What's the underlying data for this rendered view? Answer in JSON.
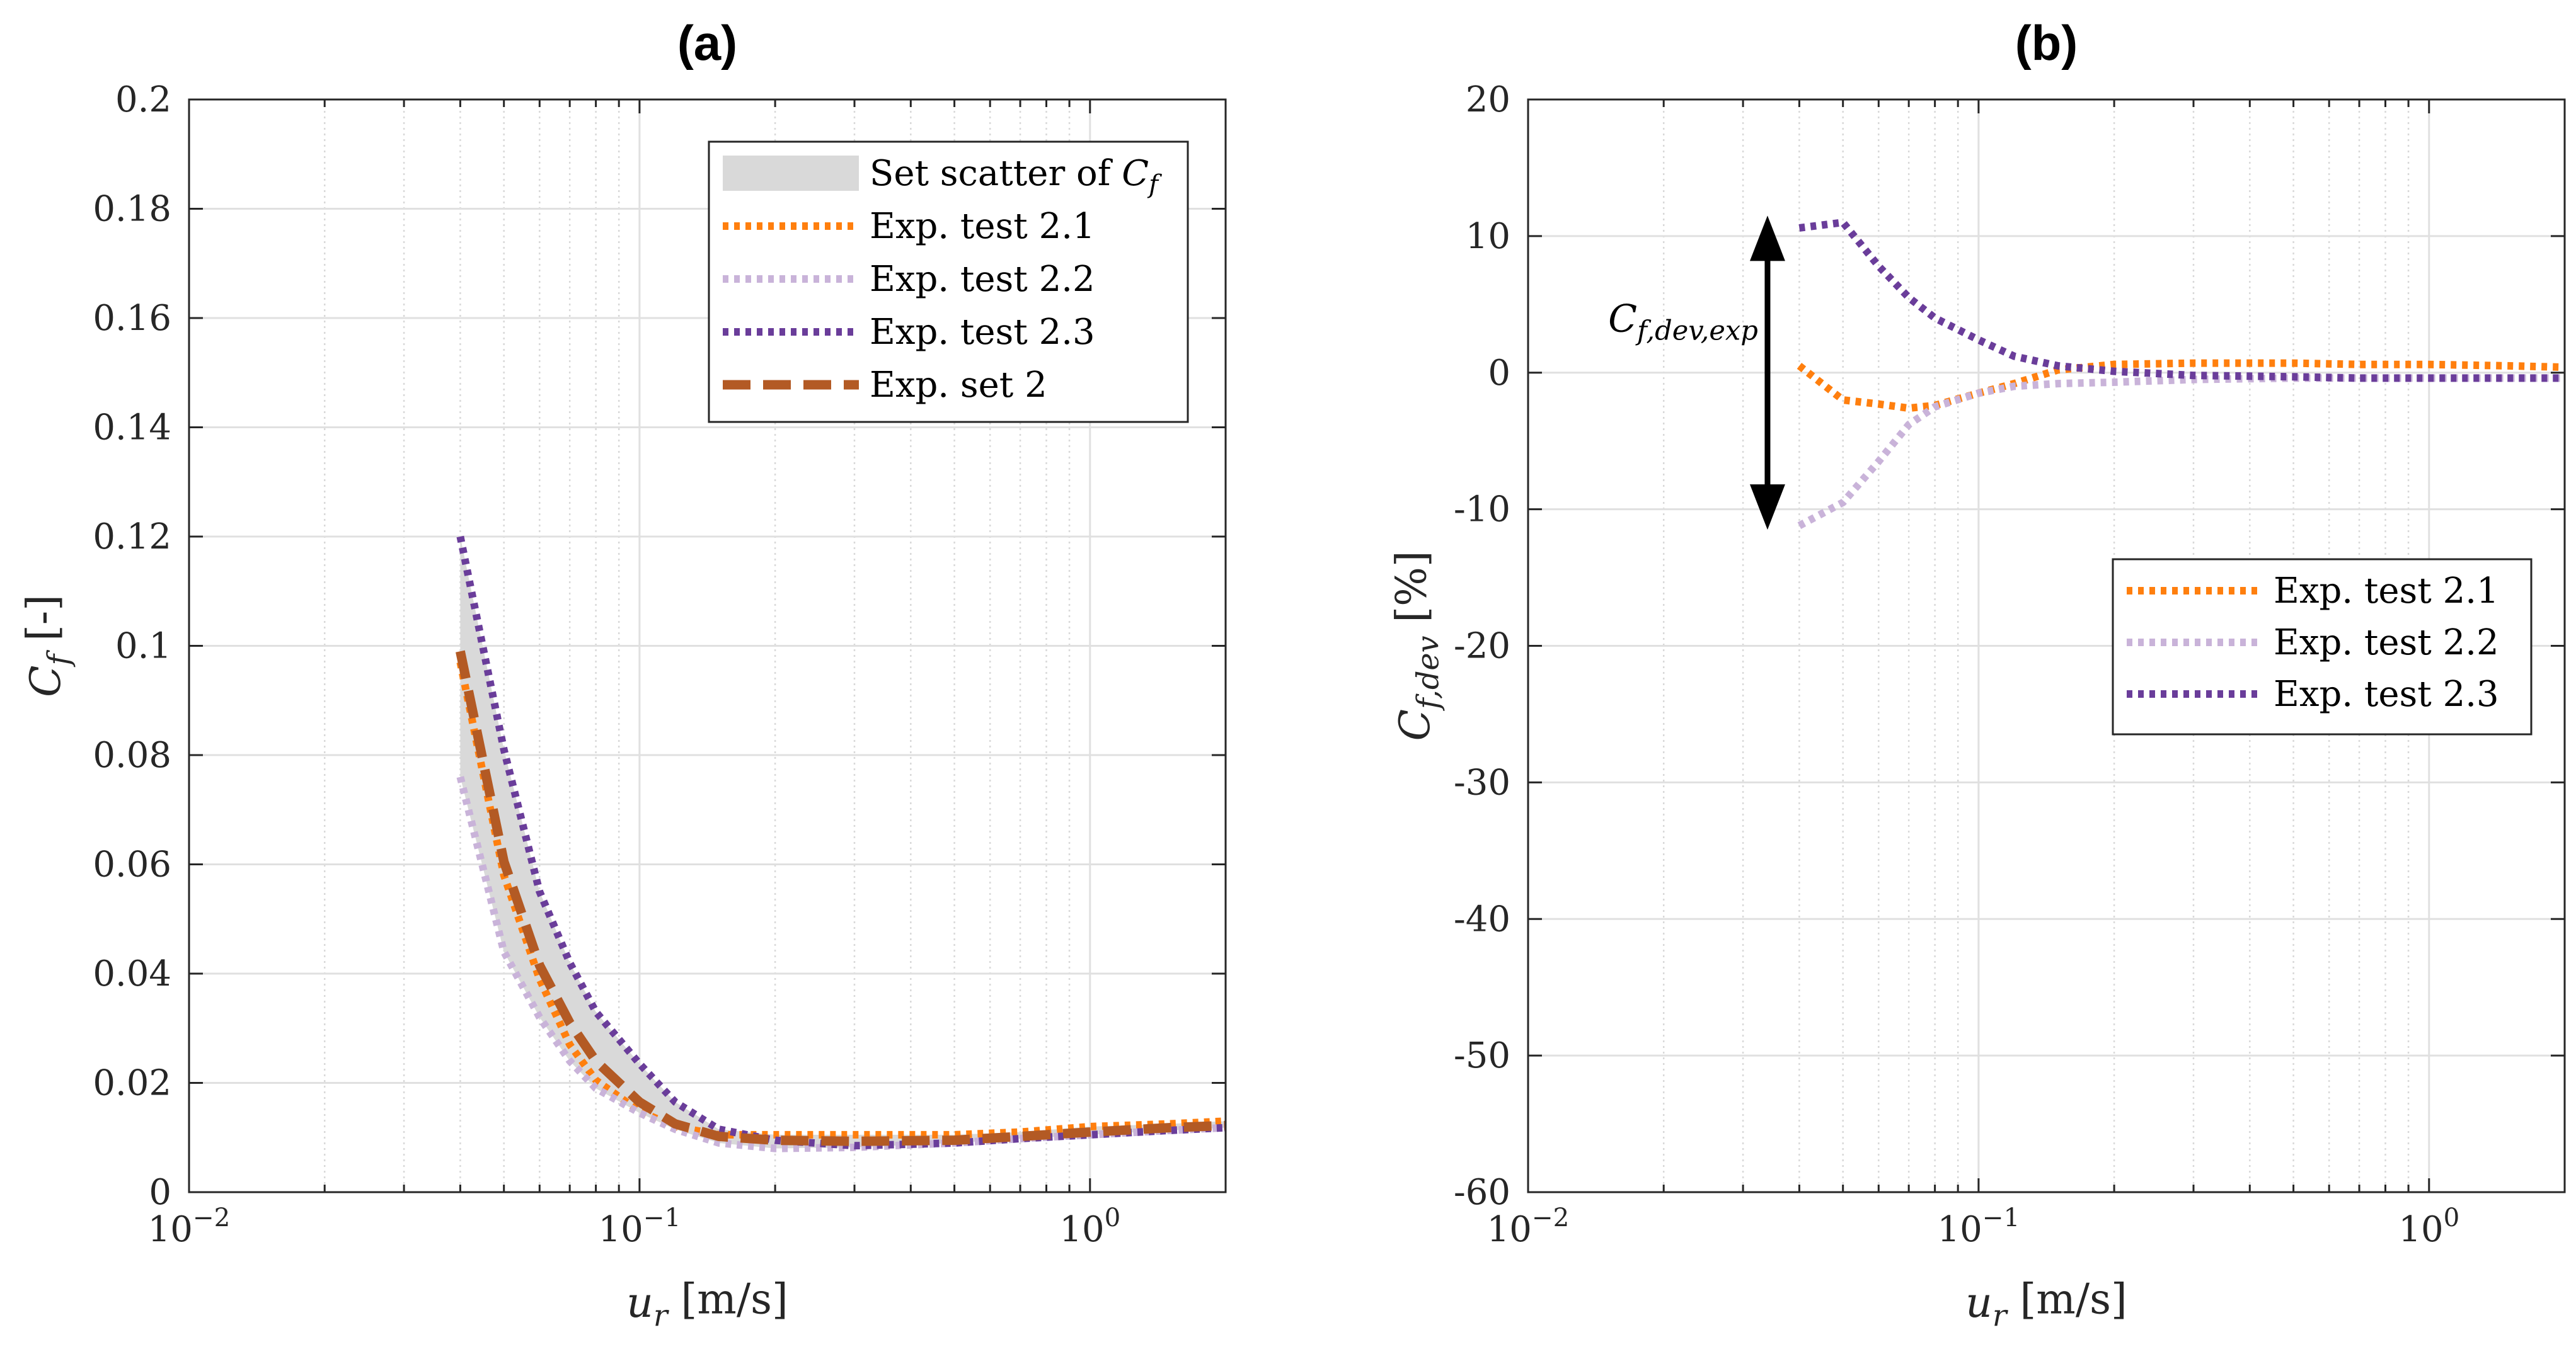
{
  "chart_data": [
    {
      "type": "line",
      "title": "(a)",
      "xscale": "log",
      "xlim": [
        0.01,
        2
      ],
      "ylim": [
        0,
        0.2
      ],
      "grid": true,
      "legend_position": "top-right",
      "xlabel": {
        "sym": "u",
        "sub": "r",
        "unit": " [m/s]"
      },
      "ylabel": {
        "sym": "C",
        "sub": "f",
        "unit": " [-]"
      },
      "xticks": [
        {
          "value": 0.01,
          "base": "10",
          "exp": "−2"
        },
        {
          "value": 0.1,
          "base": "10",
          "exp": "−1"
        },
        {
          "value": 1,
          "base": "10",
          "exp": "0"
        }
      ],
      "yticks": [
        {
          "value": 0,
          "label": "0"
        },
        {
          "value": 0.02,
          "label": "0.02"
        },
        {
          "value": 0.04,
          "label": "0.04"
        },
        {
          "value": 0.06,
          "label": "0.06"
        },
        {
          "value": 0.08,
          "label": "0.08"
        },
        {
          "value": 0.1,
          "label": "0.1"
        },
        {
          "value": 0.12,
          "label": "0.12"
        },
        {
          "value": 0.14,
          "label": "0.14"
        },
        {
          "value": 0.16,
          "label": "0.16"
        },
        {
          "value": 0.18,
          "label": "0.18"
        },
        {
          "value": 0.2,
          "label": "0.2"
        }
      ],
      "x": [
        0.04,
        0.05,
        0.06,
        0.07,
        0.08,
        0.1,
        0.12,
        0.15,
        0.2,
        0.3,
        0.5,
        0.7,
        1.0,
        1.5,
        2.0
      ],
      "scatter_band": {
        "legend_text": "Set scatter of ",
        "legend_sym": "C",
        "legend_sub": "f",
        "color": "#d9d9d9"
      },
      "series": [
        {
          "name": "Exp. test 2.1",
          "color": "#ff7f0e",
          "style": "dotted",
          "values": [
            0.097,
            0.058,
            0.039,
            0.027,
            0.0205,
            0.0148,
            0.012,
            0.0105,
            0.0105,
            0.0105,
            0.0105,
            0.011,
            0.012,
            0.0125,
            0.013
          ]
        },
        {
          "name": "Exp. test 2.2",
          "color": "#c9b3d9",
          "style": "dotted",
          "values": [
            0.076,
            0.044,
            0.032,
            0.024,
            0.019,
            0.0145,
            0.0115,
            0.009,
            0.008,
            0.0082,
            0.009,
            0.0098,
            0.0105,
            0.0113,
            0.0118
          ]
        },
        {
          "name": "Exp. test 2.3",
          "color": "#6a3d9a",
          "style": "dotted",
          "values": [
            0.12,
            0.081,
            0.055,
            0.042,
            0.033,
            0.0235,
            0.0165,
            0.0115,
            0.0095,
            0.0085,
            0.009,
            0.0098,
            0.0105,
            0.0113,
            0.0118
          ]
        },
        {
          "name": "Exp. set 2",
          "color": "#b35a24",
          "style": "dashed",
          "values": [
            0.099,
            0.0605,
            0.0415,
            0.031,
            0.024,
            0.0165,
            0.0125,
            0.0102,
            0.0095,
            0.0093,
            0.0095,
            0.0102,
            0.011,
            0.0118,
            0.0122
          ]
        }
      ]
    },
    {
      "type": "line",
      "title": "(b)",
      "xscale": "log",
      "xlim": [
        0.01,
        2
      ],
      "ylim": [
        -60,
        20
      ],
      "grid": true,
      "legend_position": "right",
      "xlabel": {
        "sym": "u",
        "sub": "r",
        "unit": " [m/s]"
      },
      "ylabel": {
        "sym": "C",
        "sub": "f,dev",
        "unit": " [%]"
      },
      "xticks": [
        {
          "value": 0.01,
          "base": "10",
          "exp": "−2"
        },
        {
          "value": 0.1,
          "base": "10",
          "exp": "−1"
        },
        {
          "value": 1,
          "base": "10",
          "exp": "0"
        }
      ],
      "yticks": [
        {
          "value": -60,
          "label": "-60"
        },
        {
          "value": -50,
          "label": "-50"
        },
        {
          "value": -40,
          "label": "-40"
        },
        {
          "value": -30,
          "label": "-30"
        },
        {
          "value": -20,
          "label": "-20"
        },
        {
          "value": -10,
          "label": "-10"
        },
        {
          "value": 0,
          "label": "0"
        },
        {
          "value": 10,
          "label": "10"
        },
        {
          "value": 20,
          "label": "20"
        }
      ],
      "x": [
        0.04,
        0.05,
        0.06,
        0.07,
        0.08,
        0.1,
        0.12,
        0.15,
        0.2,
        0.3,
        0.5,
        0.7,
        1.0,
        1.5,
        2.0
      ],
      "annotation": {
        "sym": "C",
        "sub": "f,dev,exp",
        "arrow_from": 11.5,
        "arrow_to": -11.5,
        "arrow_x": 0.034
      },
      "series": [
        {
          "name": "Exp. test 2.1",
          "color": "#ff7f0e",
          "style": "dotted",
          "values": [
            0.5,
            -2,
            -2.3,
            -2.6,
            -2.4,
            -1.5,
            -0.8,
            0.2,
            0.6,
            0.7,
            0.7,
            0.6,
            0.6,
            0.5,
            0.4
          ]
        },
        {
          "name": "Exp. test 2.2",
          "color": "#c9b3d9",
          "style": "dotted",
          "values": [
            -11.2,
            -9.5,
            -6.5,
            -3.8,
            -2.5,
            -1.5,
            -1.0,
            -0.8,
            -0.7,
            -0.5,
            -0.4,
            -0.4,
            -0.4,
            -0.4,
            -0.4
          ]
        },
        {
          "name": "Exp. test 2.3",
          "color": "#6a3d9a",
          "style": "dotted",
          "values": [
            10.6,
            11.0,
            7.8,
            5.5,
            4.0,
            2.4,
            1.2,
            0.5,
            0.1,
            -0.2,
            -0.3,
            -0.4,
            -0.4,
            -0.4,
            -0.4
          ]
        }
      ]
    }
  ]
}
